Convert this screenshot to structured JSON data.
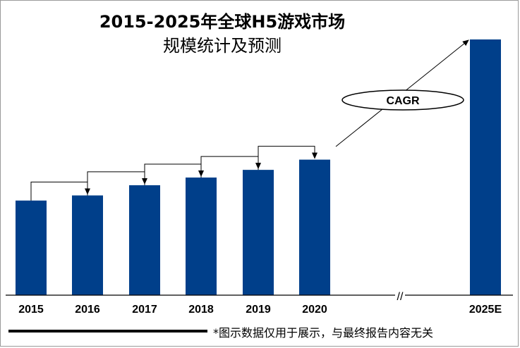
{
  "chart_data": {
    "type": "bar",
    "title_line1": "2015-2025年全球H5游戏市场",
    "title_line2": "规模统计及预测",
    "categories": [
      "2015",
      "2016",
      "2017",
      "2018",
      "2019",
      "2020",
      "2025E"
    ],
    "values": [
      37,
      39,
      43,
      46,
      49,
      53,
      100
    ],
    "bar_color": "#003f8a",
    "xlabel": "",
    "ylabel": "",
    "axis_break": "//",
    "annotation": "CAGR",
    "grid": false,
    "legend": "none"
  },
  "footer": {
    "note": "*图示数据仅用于展示，与最终报告内容无关"
  }
}
